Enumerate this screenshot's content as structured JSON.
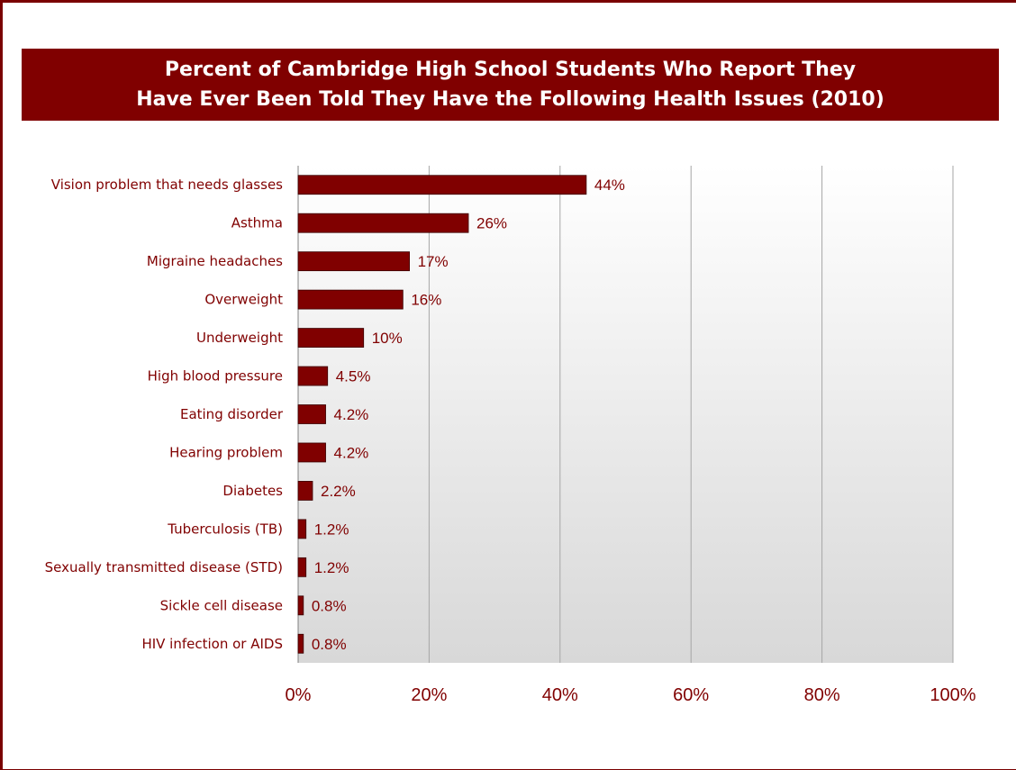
{
  "chart_data": {
    "type": "bar",
    "orientation": "horizontal",
    "title_lines": [
      "Percent of Cambridge High School Students Who Report They",
      "Have Ever Been Told They Have the Following Health Issues (2010)"
    ],
    "categories": [
      "Vision problem that needs glasses",
      "Asthma",
      "Migraine headaches",
      "Overweight",
      "Underweight",
      "High blood pressure",
      "Eating disorder",
      "Hearing problem",
      "Diabetes",
      "Tuberculosis (TB)",
      "Sexually transmitted disease (STD)",
      "Sickle cell disease",
      "HIV infection or AIDS"
    ],
    "values": [
      44,
      26,
      17,
      16,
      10,
      4.5,
      4.2,
      4.2,
      2.2,
      1.2,
      1.2,
      0.8,
      0.8
    ],
    "data_labels": [
      "44%",
      "26%",
      "17%",
      "16%",
      "10%",
      "4.5%",
      "4.2%",
      "4.2%",
      "2.2%",
      "1.2%",
      "1.2%",
      "0.8%",
      "0.8%"
    ],
    "xlim": [
      0,
      100
    ],
    "x_ticks": [
      0,
      20,
      40,
      60,
      80,
      100
    ],
    "x_tick_labels": [
      "0%",
      "20%",
      "40%",
      "60%",
      "80%",
      "100%"
    ],
    "grid": "vertical",
    "legend": "none",
    "colors": {
      "bar": "#800000",
      "text": "#800000",
      "title_bg": "#800000",
      "title_text": "#ffffff",
      "plot_bg_top": "#ffffff",
      "plot_bg_bottom": "#d8d8d8"
    }
  }
}
